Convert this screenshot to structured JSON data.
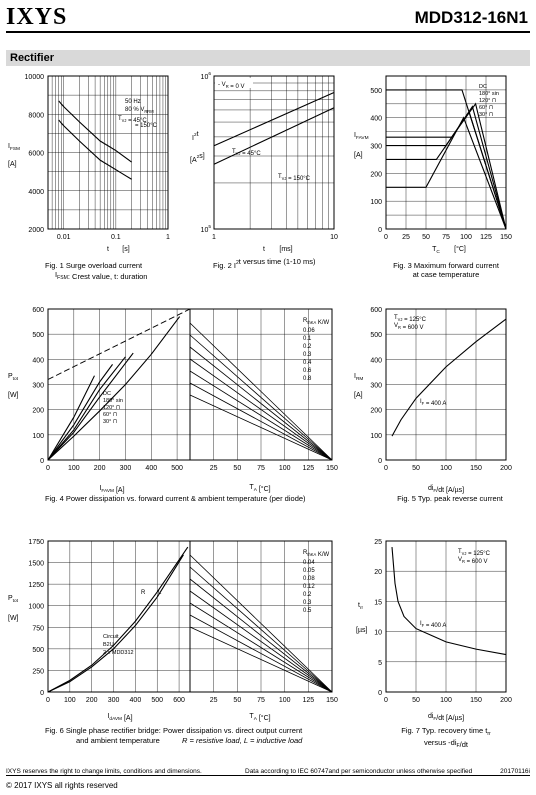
{
  "header": {
    "logo": "IXYS",
    "part": "MDD312-16N1",
    "section": "Rectifier"
  },
  "footer": {
    "left": "IXYS reserves the right to change limits, conditions and dimensions.",
    "middle": "Data according to IEC 60747and per semiconductor unless otherwise specified",
    "right": "20170116i",
    "copyright": "© 2017 IXYS all rights reserved"
  },
  "chart_data": [
    {
      "id": "fig1",
      "type": "line",
      "caption1": "Fig. 1  Surge overload current",
      "caption2": "I",
      "caption2b": "FSM",
      "caption2c": ": Crest value, t: duration",
      "ylabel": "I",
      "ylabel_sub": "FSM",
      "yunit": "[A]",
      "xlabel": "t",
      "xunit": "[s]",
      "xscale": "log",
      "xlim": [
        0.005,
        1
      ],
      "ylim": [
        2000,
        10000
      ],
      "xticks": [
        {
          "v": 0.01,
          "l": "0.01"
        },
        {
          "v": 0.1,
          "l": "0.1"
        },
        {
          "v": 1,
          "l": "1"
        }
      ],
      "yticks": [
        2000,
        4000,
        6000,
        8000,
        10000
      ],
      "annotations": [
        "50 Hz",
        "80 % V",
        "RRM",
        "T",
        "VJ",
        "=  45°C",
        "= 150°C"
      ],
      "series": [
        {
          "values": [
            [
              0.008,
              8700
            ],
            [
              0.01,
              8400
            ],
            [
              0.02,
              7600
            ],
            [
              0.05,
              6600
            ],
            [
              0.1,
              6100
            ],
            [
              0.2,
              5500
            ]
          ]
        },
        {
          "values": [
            [
              0.008,
              7700
            ],
            [
              0.01,
              7400
            ],
            [
              0.02,
              6600
            ],
            [
              0.05,
              5600
            ],
            [
              0.1,
              5100
            ],
            [
              0.2,
              4600
            ]
          ]
        }
      ]
    },
    {
      "id": "fig2",
      "type": "line",
      "caption1": "Fig. 2  I",
      "caption1b": "2",
      "caption1c": "t versus time (1-10 ms)",
      "ylabel": "I",
      "ylabel_sup": "2",
      "ylabel2": "t",
      "yunit": "[A",
      "yunit_sup": "2",
      "yunit2": "s]",
      "xlabel": "t",
      "xunit": "[ms]",
      "xscale": "log",
      "yscale": "log",
      "xlim": [
        1,
        10
      ],
      "ylim": [
        100000,
        1000000
      ],
      "xticks": [
        {
          "v": 1,
          "l": "1"
        },
        {
          "v": 10,
          "l": "10"
        }
      ],
      "yticks": [
        {
          "v": 100000,
          "l": "10",
          "s": "5"
        },
        {
          "v": 1000000,
          "l": "10",
          "s": "6"
        }
      ],
      "annotations": [
        "V",
        "R",
        "= 0 V",
        "T",
        "VJ",
        "= 45°C",
        "= 150°C"
      ],
      "series": [
        {
          "values": [
            [
              1,
              350000
            ],
            [
              10,
              780000
            ]
          ]
        },
        {
          "values": [
            [
              1,
              265000
            ],
            [
              10,
              620000
            ]
          ]
        }
      ]
    },
    {
      "id": "fig3",
      "type": "line",
      "caption1": "Fig. 3  Maximum forward current",
      "caption2": "at case temperature",
      "ylabel": "I",
      "ylabel_sub": "FAVM",
      "yunit": "[A]",
      "xlabel": "T",
      "xlabel_sub": "C",
      "xunit": "[°C]",
      "xlim": [
        0,
        150
      ],
      "ylim": [
        0,
        550
      ],
      "xticks": [
        0,
        25,
        50,
        75,
        100,
        125,
        150
      ],
      "yticks": [
        0,
        100,
        200,
        300,
        400,
        500
      ],
      "legend": [
        "DC",
        "180° sin",
        "120°",
        "60°",
        "30°"
      ],
      "series": [
        {
          "name": "DC",
          "values": [
            [
              0,
              500
            ],
            [
              95,
              500
            ],
            [
              150,
              0
            ]
          ]
        },
        {
          "name": "180° sin",
          "values": [
            [
              0,
              330
            ],
            [
              82,
              330
            ],
            [
              112,
              450
            ],
            [
              150,
              0
            ]
          ]
        },
        {
          "name": "120°",
          "values": [
            [
              0,
              300
            ],
            [
              75,
              300
            ],
            [
              108,
              440
            ],
            [
              150,
              0
            ]
          ]
        },
        {
          "name": "60°",
          "values": [
            [
              0,
              250
            ],
            [
              63,
              250
            ],
            [
              104,
              420
            ],
            [
              150,
              0
            ]
          ]
        },
        {
          "name": "30°",
          "values": [
            [
              0,
              150
            ],
            [
              50,
              150
            ],
            [
              97,
              400
            ],
            [
              150,
              0
            ]
          ]
        }
      ]
    },
    {
      "id": "fig4",
      "type": "line",
      "caption1": "Fig. 4  Power dissipation vs. forward current & ambient temperature (per diode)",
      "ylabel": "P",
      "ylabel_sub": "tot",
      "yunit": "[W]",
      "xlabel": "I",
      "xlabel_sub": "FAVM",
      "xunit": "[A]",
      "xlim": [
        0,
        550
      ],
      "ylim": [
        0,
        600
      ],
      "xticks": [
        0,
        100,
        200,
        300,
        400,
        500
      ],
      "yticks": [
        0,
        100,
        200,
        300,
        400,
        500,
        600
      ],
      "x2label": "T",
      "x2label_sub": "A",
      "x2unit": "[°C]",
      "x2ticks": [
        0,
        25,
        50,
        75,
        100,
        125,
        150
      ],
      "legend": [
        "DC",
        "180° sin",
        "120°",
        "60°",
        "30°"
      ],
      "rth_title": "R",
      "rth_sub": "thKA",
      "rth_unit": "K/W",
      "rth": [
        "0.06",
        "0.1",
        "0.2",
        "0.3",
        "0.4",
        "0.6",
        "0.8"
      ],
      "series": [
        {
          "name": "DC",
          "values": [
            [
              0,
              0
            ],
            [
              100,
              95
            ],
            [
              200,
              195
            ],
            [
              300,
              300
            ],
            [
              400,
              420
            ],
            [
              510,
              570
            ]
          ]
        },
        {
          "name": "180° sin",
          "values": [
            [
              0,
              0
            ],
            [
              100,
              110
            ],
            [
              200,
              250
            ],
            [
              330,
              425
            ]
          ]
        },
        {
          "name": "120°",
          "values": [
            [
              0,
              0
            ],
            [
              100,
              120
            ],
            [
              200,
              280
            ],
            [
              300,
              410
            ]
          ]
        },
        {
          "name": "60°",
          "values": [
            [
              0,
              0
            ],
            [
              100,
              140
            ],
            [
              200,
              310
            ],
            [
              250,
              380
            ]
          ]
        },
        {
          "name": "30°",
          "values": [
            [
              0,
              0
            ],
            [
              100,
              170
            ],
            [
              180,
              335
            ]
          ]
        }
      ]
    },
    {
      "id": "fig5",
      "type": "line",
      "caption1": "Fig. 5  Typ. peak reverse current",
      "ylabel": "I",
      "ylabel_sub": "RM",
      "yunit": "[A]",
      "xlabel": "di",
      "xlabel_sub": "F",
      "xunit": "/dt  [A/µs]",
      "xlim": [
        0,
        200
      ],
      "ylim": [
        0,
        600
      ],
      "xticks": [
        0,
        50,
        100,
        150,
        200
      ],
      "yticks": [
        0,
        100,
        200,
        300,
        400,
        500,
        600
      ],
      "annotations": [
        "T",
        "VJ",
        "= 125°C",
        "V",
        "R",
        "= 600 V",
        "I",
        "F",
        "= 400 A"
      ],
      "series": [
        {
          "values": [
            [
              10,
              95
            ],
            [
              25,
              160
            ],
            [
              50,
              245
            ],
            [
              100,
              370
            ],
            [
              150,
              470
            ],
            [
              200,
              560
            ]
          ]
        }
      ]
    },
    {
      "id": "fig6",
      "type": "line",
      "caption1": "Fig. 6  Single phase rectifier bridge: Power dissipation vs. direct output current",
      "caption2": "and ambient temperature",
      "caption2i": "R = resistive load,  L = inductive load",
      "ylabel": "P",
      "ylabel_sub": "tot",
      "yunit": "[W]",
      "xlabel": "I",
      "xlabel_sub": "dAVM",
      "xunit": "[A]",
      "xlim": [
        0,
        650
      ],
      "ylim": [
        0,
        1750
      ],
      "xticks": [
        0,
        100,
        200,
        300,
        400,
        500,
        600
      ],
      "yticks": [
        0,
        250,
        500,
        750,
        1000,
        1250,
        1500,
        1750
      ],
      "x2label": "T",
      "x2label_sub": "A",
      "x2unit": "[°C]",
      "x2ticks": [
        0,
        25,
        50,
        75,
        100,
        125,
        150
      ],
      "annotations": [
        "R",
        "L",
        "Circuit",
        "B2U",
        "2 x MDD312"
      ],
      "rth_title": "R",
      "rth_sub": "thKA",
      "rth_unit": "K/W",
      "rth": [
        "0.04",
        "0.05",
        "0.08",
        "0.12",
        "0.2",
        "0.3",
        "0.5"
      ],
      "series": [
        {
          "name": "R",
          "values": [
            [
              0,
              0
            ],
            [
              100,
              120
            ],
            [
              200,
              290
            ],
            [
              300,
              500
            ],
            [
              400,
              770
            ],
            [
              500,
              1100
            ],
            [
              620,
              1590
            ]
          ]
        },
        {
          "name": "L",
          "values": [
            [
              0,
              0
            ],
            [
              100,
              135
            ],
            [
              200,
              310
            ],
            [
              300,
              540
            ],
            [
              400,
              820
            ],
            [
              500,
              1160
            ],
            [
              640,
              1680
            ]
          ]
        }
      ]
    },
    {
      "id": "fig7",
      "type": "line",
      "caption1": "Fig. 7  Typ. recovery time t",
      "caption1b": "rr",
      "caption2": "versus -di",
      "caption2b": "F",
      "caption2c": "/dt",
      "ylabel": "t",
      "ylabel_sub": "rr",
      "yunit": "[µs]",
      "xlabel": "di",
      "xlabel_sub": "F",
      "xunit": "/dt  [A/µs]",
      "xlim": [
        0,
        200
      ],
      "ylim": [
        0,
        25
      ],
      "xticks": [
        0,
        50,
        100,
        150,
        200
      ],
      "yticks": [
        0,
        5,
        10,
        15,
        20,
        25
      ],
      "annotations": [
        "T",
        "VJ",
        "= 125°C",
        "V",
        "R",
        "= 600 V",
        "I",
        "F",
        "= 400 A"
      ],
      "series": [
        {
          "values": [
            [
              10,
              24
            ],
            [
              15,
              18
            ],
            [
              20,
              15
            ],
            [
              30,
              12.5
            ],
            [
              50,
              10.5
            ],
            [
              100,
              8.3
            ],
            [
              150,
              7.1
            ],
            [
              200,
              6.2
            ]
          ]
        }
      ]
    }
  ]
}
